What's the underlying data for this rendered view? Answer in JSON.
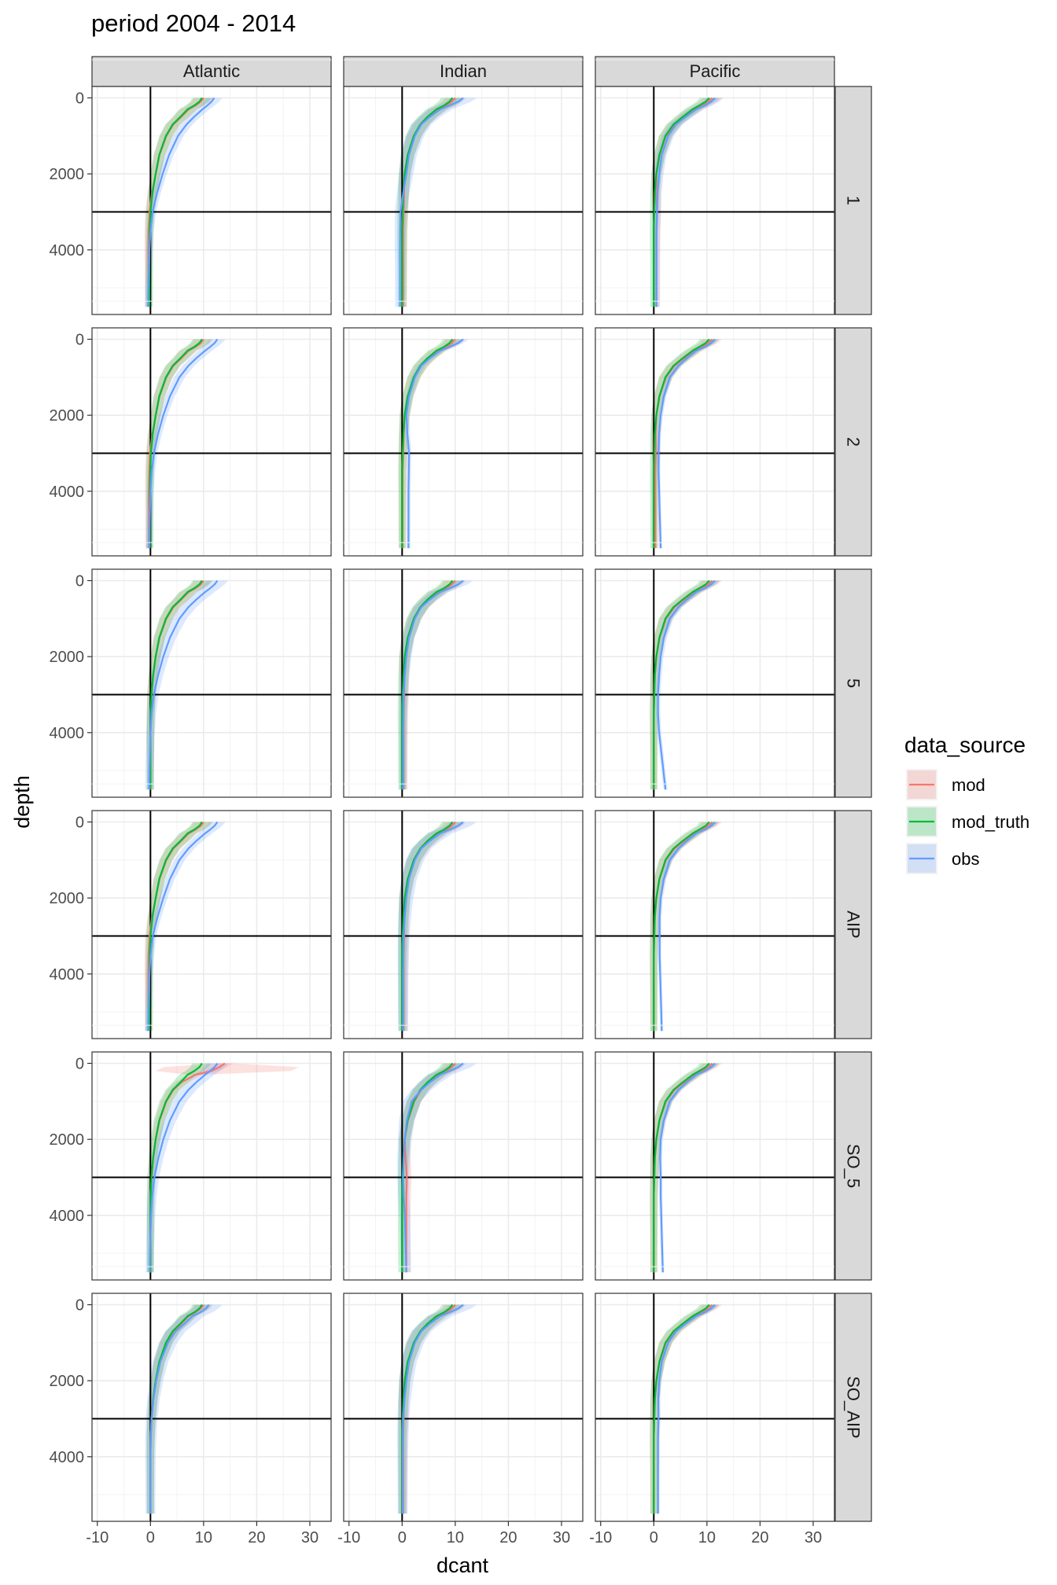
{
  "chart_data": {
    "type": "line",
    "title": "period 2004 - 2014",
    "xlabel": "dcant",
    "ylabel": "depth",
    "xlim": [
      -11,
      34
    ],
    "ylim": [
      5700,
      -300
    ],
    "y_reversed": true,
    "x_ticks": [
      -10,
      0,
      10,
      20,
      30
    ],
    "y_ticks": [
      0,
      2000,
      4000
    ],
    "grid": true,
    "reference_lines": {
      "vertical_x": 0,
      "horizontal_depth": 3000
    },
    "columns": [
      "Atlantic",
      "Indian",
      "Pacific"
    ],
    "rows": [
      "1",
      "2",
      "5",
      "AIP",
      "SO_5",
      "SO_AIP"
    ],
    "legend": {
      "title": "data_source",
      "position": "right",
      "entries": [
        {
          "name": "mod",
          "color": "#F8766D"
        },
        {
          "name": "mod_truth",
          "color": "#00BA38"
        },
        {
          "name": "obs",
          "color": "#619CFF"
        }
      ]
    },
    "depths": [
      0,
      100,
      200,
      300,
      500,
      700,
      1000,
      1500,
      2000,
      2500,
      3000,
      3500,
      4000,
      4500,
      5000,
      5500
    ],
    "shapes": {
      "atl_m": [
        10,
        9.5,
        8.5,
        7.2,
        5.8,
        4.3,
        3.0,
        1.7,
        1.0,
        0.5,
        0.2,
        0.05,
        0,
        0,
        0,
        0
      ],
      "atl_o": [
        12,
        11.5,
        10.7,
        9.8,
        8.2,
        6.8,
        5.2,
        3.5,
        2.3,
        1.5,
        0.9,
        0.5,
        0.3,
        0.2,
        0.1,
        0.05
      ],
      "ind_m": [
        10,
        9.4,
        8.3,
        6.8,
        5.0,
        3.6,
        2.3,
        1.1,
        0.5,
        0.25,
        0.1,
        0,
        0,
        0,
        0,
        0
      ],
      "ind_o": [
        11.5,
        10.6,
        8.9,
        7.2,
        5.2,
        3.6,
        2.4,
        1.3,
        0.8,
        0.5,
        0.3,
        0.25,
        0.2,
        0.2,
        0.2,
        0.2
      ],
      "pac_m": [
        11,
        10.3,
        9.0,
        7.7,
        5.7,
        3.9,
        2.3,
        1.1,
        0.5,
        0.2,
        0.1,
        0,
        0,
        0,
        0,
        0
      ],
      "pac_o1": [
        11.5,
        10.8,
        9.6,
        8.0,
        6.0,
        4.2,
        2.7,
        1.5,
        1.0,
        0.7,
        0.6,
        0.5,
        0.5,
        0.5,
        0.5,
        0.5
      ],
      "pac_o2": [
        11.5,
        10.8,
        9.6,
        8.0,
        6.2,
        4.6,
        3.0,
        1.9,
        1.3,
        1.0,
        0.9,
        0.9,
        1.0,
        1.1,
        1.2,
        1.3
      ],
      "pac_o5": [
        11.5,
        10.8,
        9.6,
        8.0,
        6.2,
        4.6,
        3.0,
        1.9,
        1.3,
        1.0,
        0.8,
        0.8,
        1.0,
        1.4,
        1.8,
        2.2
      ],
      "atl_so5_mod": [
        14,
        13,
        11.4,
        8.5,
        5.8,
        4.3,
        3.0,
        1.7,
        1.0,
        0.5,
        0.2,
        0.05,
        0,
        0,
        0,
        0
      ],
      "ind_so5_obs": [
        11.5,
        10.6,
        8.9,
        7.2,
        5.2,
        3.6,
        1.8,
        0.9,
        0.5,
        0.3,
        0.2,
        0.3,
        0.5,
        0.6,
        0.7,
        0.8
      ]
    },
    "panels": [
      {
        "column": "Atlantic",
        "row": "1",
        "series": [
          {
            "name": "mod",
            "shape": "atl_m",
            "scale": 1.0,
            "deep": -0.4,
            "band": 1.8
          },
          {
            "name": "mod_truth",
            "shape": "atl_m",
            "scale": 0.97,
            "deep": -0.2,
            "band": 1.8
          },
          {
            "name": "obs",
            "shape": "atl_o",
            "scale": 1.0,
            "deep": -0.5,
            "band": 1.5
          }
        ]
      },
      {
        "column": "Indian",
        "row": "1",
        "series": [
          {
            "name": "mod",
            "shape": "ind_m",
            "scale": 1.0,
            "deep": 0.2,
            "band": 2.0
          },
          {
            "name": "mod_truth",
            "shape": "ind_m",
            "scale": 0.95,
            "deep": 0.0,
            "band": 2.2
          },
          {
            "name": "obs",
            "shape": "ind_o",
            "scale": 1.0,
            "deep": -0.6,
            "band": 2.5
          }
        ]
      },
      {
        "column": "Pacific",
        "row": "1",
        "series": [
          {
            "name": "mod",
            "shape": "pac_m",
            "scale": 1.0,
            "deep": 0.5,
            "band": 1.8
          },
          {
            "name": "mod_truth",
            "shape": "pac_m",
            "scale": 0.95,
            "deep": 0.0,
            "band": 1.8
          },
          {
            "name": "obs",
            "shape": "pac_o1",
            "scale": 1.0,
            "deep": 0.0,
            "band": 1.6
          }
        ]
      },
      {
        "column": "Atlantic",
        "row": "2",
        "series": [
          {
            "name": "mod",
            "shape": "atl_m",
            "scale": 1.0,
            "deep": -0.3,
            "band": 1.8
          },
          {
            "name": "mod_truth",
            "shape": "atl_m",
            "scale": 0.97,
            "deep": -0.1,
            "band": 1.8
          },
          {
            "name": "obs",
            "shape": "atl_o",
            "scale": 1.05,
            "deep": -0.3,
            "band": 1.5
          }
        ]
      },
      {
        "column": "Indian",
        "row": "2",
        "series": [
          {
            "name": "mod",
            "shape": "ind_m",
            "scale": 1.0,
            "deep": 0.1,
            "band": 1.8
          },
          {
            "name": "mod_truth",
            "shape": "ind_m",
            "scale": 0.95,
            "deep": 0.0,
            "band": 1.8
          },
          {
            "name": "obs",
            "shape": "ind_o",
            "scale": 1.0,
            "deep": 1.0,
            "band": 1.0
          }
        ]
      },
      {
        "column": "Pacific",
        "row": "2",
        "series": [
          {
            "name": "mod",
            "shape": "pac_m",
            "scale": 1.0,
            "deep": 0.3,
            "band": 1.8
          },
          {
            "name": "mod_truth",
            "shape": "pac_m",
            "scale": 0.95,
            "deep": 0.0,
            "band": 1.8
          },
          {
            "name": "obs",
            "shape": "pac_o2",
            "scale": 1.0,
            "deep": 0.0,
            "band": 0.8
          }
        ]
      },
      {
        "column": "Atlantic",
        "row": "5",
        "series": [
          {
            "name": "mod",
            "shape": "atl_m",
            "scale": 1.0,
            "deep": 0.0,
            "band": 1.8
          },
          {
            "name": "mod_truth",
            "shape": "atl_m",
            "scale": 0.97,
            "deep": 0.0,
            "band": 1.8
          },
          {
            "name": "obs",
            "shape": "atl_o",
            "scale": 1.05,
            "deep": -0.3,
            "band": 2.0
          }
        ]
      },
      {
        "column": "Indian",
        "row": "5",
        "series": [
          {
            "name": "mod",
            "shape": "ind_m",
            "scale": 1.0,
            "deep": 0.3,
            "band": 2.0
          },
          {
            "name": "mod_truth",
            "shape": "ind_m",
            "scale": 0.95,
            "deep": 0.0,
            "band": 2.0
          },
          {
            "name": "obs",
            "shape": "ind_o",
            "scale": 1.0,
            "deep": 0.0,
            "band": 1.8
          }
        ]
      },
      {
        "column": "Pacific",
        "row": "5",
        "series": [
          {
            "name": "mod",
            "shape": "pac_m",
            "scale": 1.0,
            "deep": 0.0,
            "band": 1.8
          },
          {
            "name": "mod_truth",
            "shape": "pac_m",
            "scale": 0.95,
            "deep": 0.0,
            "band": 1.8
          },
          {
            "name": "obs",
            "shape": "pac_o5",
            "scale": 1.0,
            "deep": 0.0,
            "band": 1.0
          }
        ]
      },
      {
        "column": "Atlantic",
        "row": "AIP",
        "series": [
          {
            "name": "mod",
            "shape": "atl_m",
            "scale": 1.0,
            "deep": -0.4,
            "band": 1.8
          },
          {
            "name": "mod_truth",
            "shape": "atl_m",
            "scale": 0.97,
            "deep": -0.2,
            "band": 1.8
          },
          {
            "name": "obs",
            "shape": "atl_o",
            "scale": 1.05,
            "deep": -0.5,
            "band": 1.5
          }
        ]
      },
      {
        "column": "Indian",
        "row": "AIP",
        "series": [
          {
            "name": "mod",
            "shape": "ind_m",
            "scale": 1.0,
            "deep": 0.3,
            "band": 2.0
          },
          {
            "name": "mod_truth",
            "shape": "ind_m",
            "scale": 0.95,
            "deep": 0.0,
            "band": 2.0
          },
          {
            "name": "obs",
            "shape": "ind_o",
            "scale": 1.0,
            "deep": 0.0,
            "band": 2.5
          }
        ]
      },
      {
        "column": "Pacific",
        "row": "AIP",
        "series": [
          {
            "name": "mod",
            "shape": "pac_m",
            "scale": 1.0,
            "deep": 0.0,
            "band": 1.8
          },
          {
            "name": "mod_truth",
            "shape": "pac_m",
            "scale": 0.95,
            "deep": 0.0,
            "band": 1.8
          },
          {
            "name": "obs",
            "shape": "pac_o2",
            "scale": 1.0,
            "deep": 0.2,
            "band": 0.8
          }
        ]
      },
      {
        "column": "Atlantic",
        "row": "SO_5",
        "series": [
          {
            "name": "mod",
            "shape": "atl_so5_mod",
            "scale": 1.0,
            "deep": 0.0,
            "band": 1.5,
            "spike": 15
          },
          {
            "name": "mod_truth",
            "shape": "atl_m",
            "scale": 0.97,
            "deep": 0.0,
            "band": 1.8
          },
          {
            "name": "obs",
            "shape": "atl_o",
            "scale": 1.05,
            "deep": -0.2,
            "band": 2.0
          }
        ]
      },
      {
        "column": "Indian",
        "row": "SO_5",
        "series": [
          {
            "name": "mod",
            "shape": "ind_m",
            "scale": 1.0,
            "deep": 0.8,
            "band": 2.0
          },
          {
            "name": "mod_truth",
            "shape": "ind_m",
            "scale": 0.95,
            "deep": 0.0,
            "band": 2.0
          },
          {
            "name": "obs",
            "shape": "ind_so5_obs",
            "scale": 1.0,
            "deep": 0.0,
            "band": 2.5
          }
        ]
      },
      {
        "column": "Pacific",
        "row": "SO_5",
        "series": [
          {
            "name": "mod",
            "shape": "pac_m",
            "scale": 1.0,
            "deep": 0.0,
            "band": 1.8
          },
          {
            "name": "mod_truth",
            "shape": "pac_m",
            "scale": 0.95,
            "deep": 0.0,
            "band": 1.8
          },
          {
            "name": "obs",
            "shape": "pac_o2",
            "scale": 1.0,
            "deep": 0.4,
            "band": 0.8
          }
        ]
      },
      {
        "column": "Atlantic",
        "row": "SO_AIP",
        "series": [
          {
            "name": "mod",
            "shape": "atl_m",
            "scale": 1.0,
            "deep": 0.0,
            "band": 1.8
          },
          {
            "name": "mod_truth",
            "shape": "atl_m",
            "scale": 0.97,
            "deep": 0.0,
            "band": 1.8
          },
          {
            "name": "obs",
            "shape": "atl_m",
            "scale": 1.1,
            "deep": 0.0,
            "band": 2.5
          }
        ]
      },
      {
        "column": "Indian",
        "row": "SO_AIP",
        "series": [
          {
            "name": "mod",
            "shape": "ind_m",
            "scale": 1.0,
            "deep": 0.2,
            "band": 2.0
          },
          {
            "name": "mod_truth",
            "shape": "ind_m",
            "scale": 0.95,
            "deep": 0.0,
            "band": 2.0
          },
          {
            "name": "obs",
            "shape": "ind_o",
            "scale": 1.0,
            "deep": -0.1,
            "band": 2.5
          }
        ]
      },
      {
        "column": "Pacific",
        "row": "SO_AIP",
        "series": [
          {
            "name": "mod",
            "shape": "pac_m",
            "scale": 1.0,
            "deep": 0.0,
            "band": 1.8
          },
          {
            "name": "mod_truth",
            "shape": "pac_m",
            "scale": 0.95,
            "deep": 0.0,
            "band": 1.8
          },
          {
            "name": "obs",
            "shape": "pac_o1",
            "scale": 1.0,
            "deep": 0.3,
            "band": 0.8
          }
        ]
      }
    ]
  }
}
